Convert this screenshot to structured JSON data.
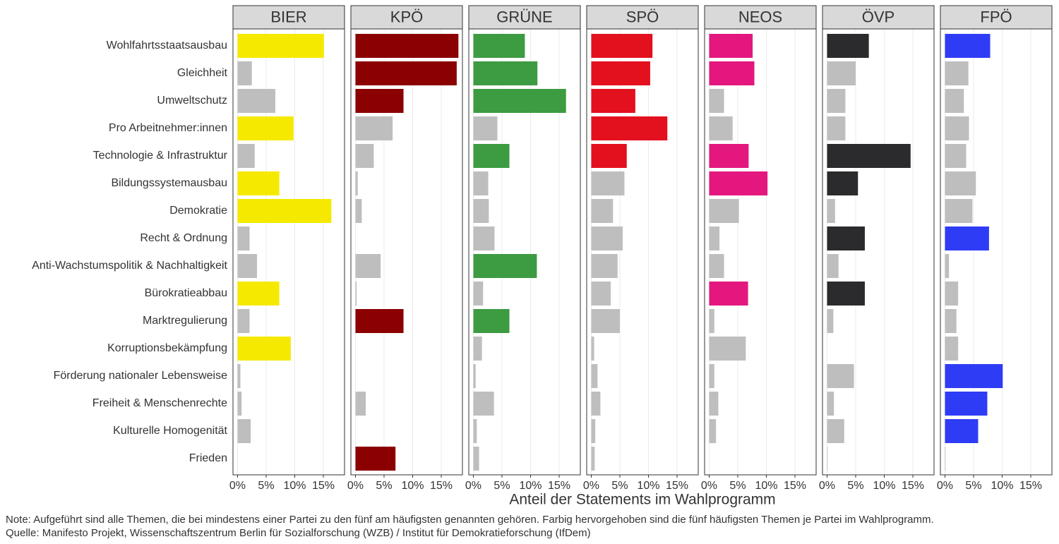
{
  "chart_data": {
    "type": "bar",
    "orientation": "horizontal",
    "xlabel": "Anteil der Statements im Wahlprogramm",
    "notes": [
      "Note: Aufgeführt sind alle Themen, die bei mindestens einer Partei zu den fünf am häufigsten genannten gehören. Farbig hervorgehoben sind die fünf häufigsten Themen je Partei im Wahlprogramm.",
      "Quelle: Manifesto Projekt, Wissenschaftszentrum Berlin für Sozialforschung (WZB) / Institut für Demokratieforschung (IfDem)"
    ],
    "categories": [
      "Wohlfahrtsstaatsausbau",
      "Gleichheit",
      "Umweltschutz",
      "Pro Arbeitnehmer:innen",
      "Technologie & Infrastruktur",
      "Bildungssystemausbau",
      "Demokratie",
      "Recht & Ordnung",
      "Anti-Wachstumspolitik & Nachhaltigkeit",
      "Bürokratieabbau",
      "Marktregulierung",
      "Korruptionsbekämpfung",
      "Förderung nationaler Lebensweise",
      "Freiheit & Menschenrechte",
      "Kulturelle Homogenität",
      "Frieden"
    ],
    "xlim": [
      -0.8,
      18.7
    ],
    "xticks": [
      {
        "value": 0,
        "label": "0%"
      },
      {
        "value": 5,
        "label": "5%"
      },
      {
        "value": 10,
        "label": "10%"
      },
      {
        "value": 15,
        "label": "15%"
      }
    ],
    "grid": true,
    "other_color": "#bebebe",
    "series": [
      {
        "name": "BIER",
        "color": "#f5e900",
        "values": [
          15.1,
          2.5,
          6.6,
          9.8,
          3.0,
          7.3,
          16.4,
          2.1,
          3.4,
          7.3,
          2.1,
          9.3,
          0.5,
          0.7,
          2.3,
          0
        ],
        "highlight": [
          true,
          false,
          false,
          true,
          false,
          true,
          true,
          false,
          false,
          true,
          false,
          true,
          false,
          false,
          false,
          false
        ]
      },
      {
        "name": "KPÖ",
        "color": "#8b0000",
        "values": [
          18.0,
          17.7,
          8.4,
          6.5,
          3.2,
          0.4,
          1.1,
          0,
          4.4,
          0.2,
          8.4,
          0,
          0,
          1.8,
          0,
          7.0
        ],
        "highlight": [
          true,
          true,
          true,
          false,
          false,
          false,
          false,
          false,
          false,
          false,
          true,
          false,
          false,
          false,
          false,
          true
        ]
      },
      {
        "name": "GRÜNE",
        "color": "#3d9b41",
        "values": [
          9.0,
          11.2,
          16.2,
          4.2,
          6.3,
          2.6,
          2.7,
          3.7,
          11.1,
          1.7,
          6.3,
          1.5,
          0.4,
          3.6,
          0.6,
          1.0
        ],
        "highlight": [
          true,
          true,
          true,
          false,
          true,
          false,
          false,
          false,
          true,
          false,
          true,
          false,
          false,
          false,
          false,
          false
        ]
      },
      {
        "name": "SPÖ",
        "color": "#e3101e",
        "values": [
          10.7,
          10.3,
          7.7,
          13.3,
          6.2,
          5.8,
          3.8,
          5.5,
          4.6,
          3.4,
          5.0,
          0.5,
          1.1,
          1.6,
          0.7,
          0.6
        ],
        "highlight": [
          true,
          true,
          true,
          true,
          true,
          false,
          false,
          false,
          false,
          false,
          false,
          false,
          false,
          false,
          false,
          false
        ]
      },
      {
        "name": "NEOS",
        "color": "#e3177e",
        "values": [
          7.6,
          7.9,
          2.6,
          4.1,
          6.9,
          10.2,
          5.2,
          1.8,
          2.6,
          6.8,
          0.9,
          6.4,
          0.9,
          1.6,
          1.2,
          0
        ],
        "highlight": [
          true,
          true,
          false,
          false,
          true,
          true,
          false,
          false,
          false,
          true,
          false,
          false,
          false,
          false,
          false,
          false
        ]
      },
      {
        "name": "ÖVP",
        "color": "#2b2b2d",
        "values": [
          7.3,
          5.0,
          3.2,
          3.2,
          14.6,
          5.4,
          1.4,
          6.6,
          2.0,
          6.6,
          1.1,
          0,
          4.7,
          1.2,
          3.0,
          0.1
        ],
        "highlight": [
          true,
          false,
          false,
          false,
          true,
          true,
          false,
          true,
          false,
          true,
          false,
          false,
          false,
          false,
          false,
          false
        ]
      },
      {
        "name": "FPÖ",
        "color": "#2f3cf5",
        "values": [
          7.9,
          4.1,
          3.3,
          4.2,
          3.7,
          5.4,
          4.8,
          7.7,
          0.7,
          2.3,
          2.0,
          2.3,
          10.1,
          7.4,
          5.8,
          0.1
        ],
        "highlight": [
          true,
          false,
          false,
          false,
          false,
          false,
          false,
          true,
          false,
          false,
          false,
          false,
          true,
          true,
          true,
          false
        ]
      }
    ]
  }
}
